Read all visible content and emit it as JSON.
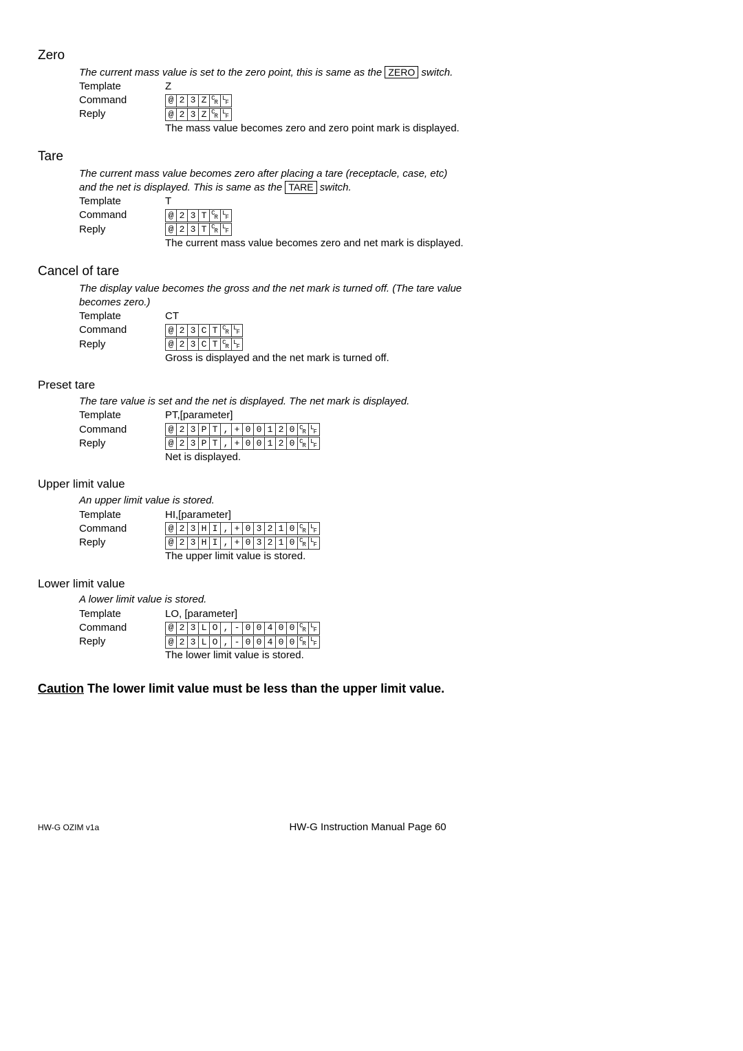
{
  "zero": {
    "title": "Zero",
    "desc_prefix": "The current mass value is set to the zero point, this is same as the ",
    "desc_box": "ZERO",
    "desc_suffix": " switch.",
    "template_label": "Template",
    "template_value": "Z",
    "command_label": "Command",
    "command_cells": [
      "@",
      "2",
      "3",
      "Z",
      "CR",
      "LF"
    ],
    "reply_label": "Reply",
    "reply_cells": [
      "@",
      "2",
      "3",
      "Z",
      "CR",
      "LF"
    ],
    "reply_text": "The mass value becomes zero and zero point mark is displayed."
  },
  "tare": {
    "title": "Tare",
    "desc_line1": "The current mass value becomes zero after placing a tare (receptacle, case, etc)",
    "desc_line2_prefix": "and the net is displayed. This is same as the ",
    "desc_box": "TARE",
    "desc_line2_suffix": " switch.",
    "template_label": "Template",
    "template_value": "T",
    "command_label": "Command",
    "command_cells": [
      "@",
      "2",
      "3",
      "T",
      "CR",
      "LF"
    ],
    "reply_label": "Reply",
    "reply_cells": [
      "@",
      "2",
      "3",
      "T",
      "CR",
      "LF"
    ],
    "reply_text": "The current mass value becomes zero and net mark is displayed."
  },
  "cancel": {
    "title": "Cancel of tare",
    "desc_line1": "The display value becomes the gross and the net mark is turned off. (The tare value",
    "desc_line2": "becomes zero.)",
    "template_label": "Template",
    "template_value": "CT",
    "command_label": "Command",
    "command_cells": [
      "@",
      "2",
      "3",
      "C",
      "T",
      "CR",
      "LF"
    ],
    "reply_label": "Reply",
    "reply_cells": [
      "@",
      "2",
      "3",
      "C",
      "T",
      "CR",
      "LF"
    ],
    "reply_text": "Gross is displayed and the net mark is turned off."
  },
  "preset": {
    "title": "Preset tare",
    "desc": "The tare value is set and the net is displayed. The net mark is displayed.",
    "template_label": "Template",
    "template_value": "PT,[parameter]",
    "command_label": "Command",
    "command_cells": [
      "@",
      "2",
      "3",
      "P",
      "T",
      ",",
      "+",
      "0",
      "0",
      "1",
      "2",
      "0",
      "CR",
      "LF"
    ],
    "reply_label": "Reply",
    "reply_cells": [
      "@",
      "2",
      "3",
      "P",
      "T",
      ",",
      "+",
      "0",
      "0",
      "1",
      "2",
      "0",
      "CR",
      "LF"
    ],
    "reply_text": "Net  is displayed."
  },
  "upper": {
    "title": "Upper limit value",
    "desc": "An upper limit value is stored.",
    "template_label": "Template",
    "template_value": "HI,[parameter]",
    "command_label": "Command",
    "command_cells": [
      "@",
      "2",
      "3",
      "H",
      "I",
      ",",
      "+",
      "0",
      "3",
      "2",
      "1",
      "0",
      "CR",
      "LF"
    ],
    "reply_label": "Reply",
    "reply_cells": [
      "@",
      "2",
      "3",
      "H",
      "I",
      ",",
      "+",
      "0",
      "3",
      "2",
      "1",
      "0",
      "CR",
      "LF"
    ],
    "reply_text": "The upper limit value is stored."
  },
  "lower": {
    "title": "Lower limit value",
    "desc": "A lower limit value is stored.",
    "template_label": "Template",
    "template_value": "LO, [parameter]",
    "command_label": "Command",
    "command_cells": [
      "@",
      "2",
      "3",
      "L",
      "O",
      ",",
      "-",
      "0",
      "0",
      "4",
      "0",
      "0",
      "CR",
      "LF"
    ],
    "reply_label": "Reply",
    "reply_cells": [
      "@",
      "2",
      "3",
      "L",
      "O",
      ",",
      "-",
      "0",
      "0",
      "4",
      "0",
      "0",
      "CR",
      "LF"
    ],
    "reply_text": "The lower limit value is stored."
  },
  "caution": {
    "label": "Caution",
    "text": " The lower limit value must be less than the upper limit value."
  },
  "footer": {
    "left": "HW-G OZIM v1a",
    "center": "HW-G Instruction Manual Page 60"
  }
}
